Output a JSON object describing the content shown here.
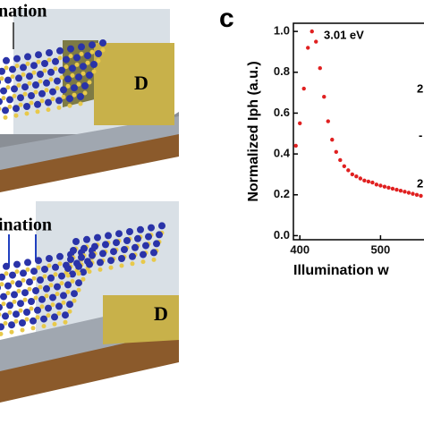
{
  "illustration": {
    "top_label": "nation",
    "bottom_label": "ination",
    "top_contact": "D",
    "bottom_contact": "D"
  },
  "panel_label": "c",
  "chart_data": {
    "type": "scatter",
    "color": "#e02020",
    "y_label": "Normalized Iph (a.u.)",
    "x_label": "Illumination w",
    "annotation": "3.01 eV",
    "cropped_labels": [
      "2",
      "-",
      "2"
    ],
    "xlim": [
      392,
      555
    ],
    "ylim": [
      -0.02,
      1.04
    ],
    "xticks": [
      400,
      500
    ],
    "yticks": [
      {
        "value": 0,
        "label": "0.0"
      },
      {
        "value": 0.2,
        "label": "0.2"
      },
      {
        "value": 0.4,
        "label": "0.4"
      },
      {
        "value": 0.6,
        "label": "0.6"
      },
      {
        "value": 0.8,
        "label": "0.8"
      },
      {
        "value": 1,
        "label": "1.0"
      }
    ],
    "x": [
      395,
      400,
      405,
      410,
      415,
      420,
      425,
      430,
      435,
      440,
      445,
      450,
      455,
      460,
      465,
      470,
      475,
      480,
      485,
      490,
      495,
      500,
      505,
      510,
      515,
      520,
      525,
      530,
      535,
      540,
      545,
      550
    ],
    "values": [
      0.44,
      0.55,
      0.72,
      0.92,
      1.0,
      0.95,
      0.82,
      0.68,
      0.56,
      0.47,
      0.41,
      0.37,
      0.34,
      0.32,
      0.3,
      0.29,
      0.28,
      0.27,
      0.265,
      0.26,
      0.25,
      0.245,
      0.24,
      0.235,
      0.23,
      0.225,
      0.22,
      0.215,
      0.21,
      0.205,
      0.2,
      0.195
    ]
  }
}
